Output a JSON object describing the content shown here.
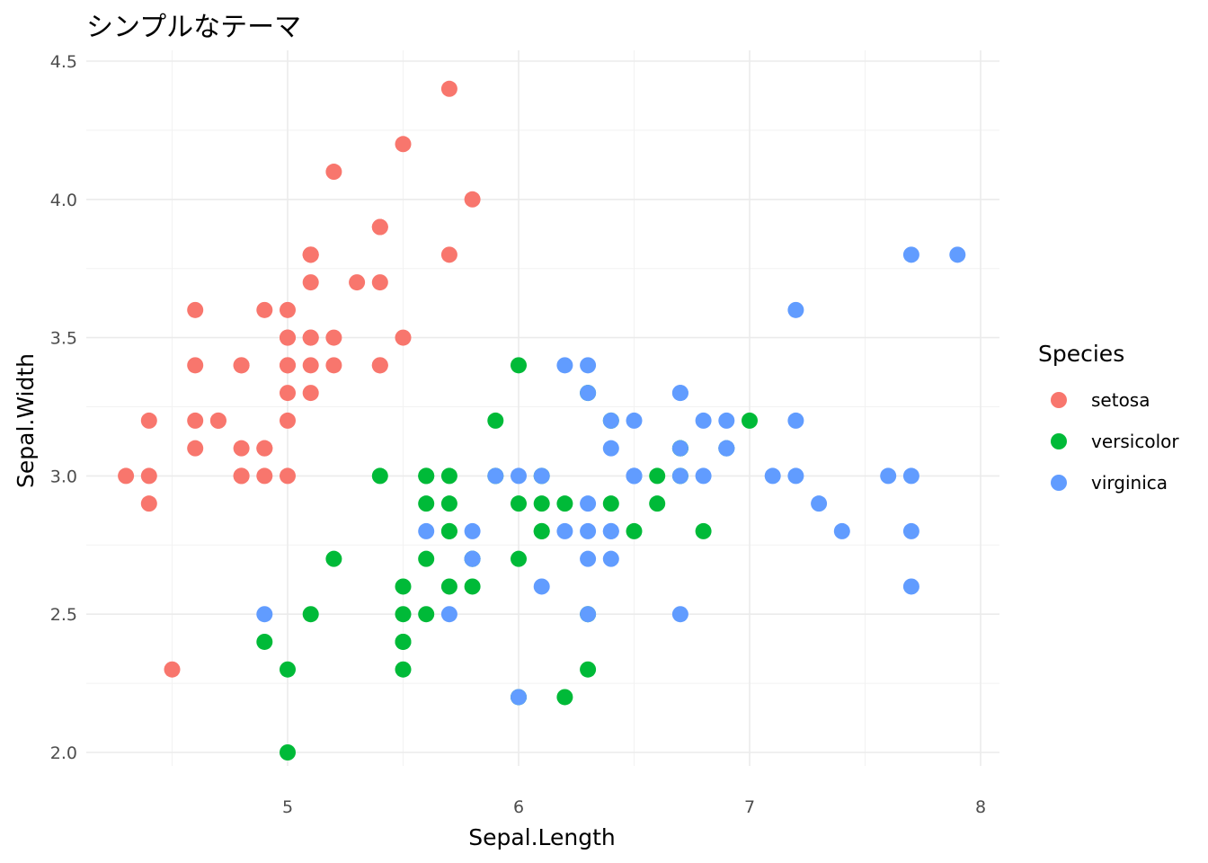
{
  "chart_data": {
    "type": "scatter",
    "title": "シンプルなテーマ",
    "xlabel": "Sepal.Length",
    "ylabel": "Sepal.Width",
    "xlim": [
      4.18,
      8.12
    ],
    "ylim": [
      1.88,
      4.52
    ],
    "x_ticks": [
      5,
      6,
      7,
      8
    ],
    "y_ticks": [
      2.0,
      2.5,
      3.0,
      3.5,
      4.0,
      4.5
    ],
    "x_tick_labels": [
      "5",
      "6",
      "7",
      "8"
    ],
    "y_tick_labels": [
      "2.0",
      "2.5",
      "3.0",
      "3.5",
      "4.0",
      "4.5"
    ],
    "grid": true,
    "legend": {
      "title": "Species",
      "position": "right"
    },
    "series": [
      {
        "name": "setosa",
        "color": "#F8766D",
        "points": [
          [
            5.1,
            3.5
          ],
          [
            4.9,
            3.0
          ],
          [
            4.7,
            3.2
          ],
          [
            4.6,
            3.1
          ],
          [
            5.0,
            3.6
          ],
          [
            5.4,
            3.9
          ],
          [
            4.6,
            3.4
          ],
          [
            5.0,
            3.4
          ],
          [
            4.4,
            2.9
          ],
          [
            4.9,
            3.1
          ],
          [
            5.4,
            3.7
          ],
          [
            4.8,
            3.4
          ],
          [
            4.8,
            3.0
          ],
          [
            4.3,
            3.0
          ],
          [
            5.8,
            4.0
          ],
          [
            5.7,
            4.4
          ],
          [
            5.4,
            3.9
          ],
          [
            5.1,
            3.5
          ],
          [
            5.7,
            3.8
          ],
          [
            5.1,
            3.8
          ],
          [
            5.4,
            3.4
          ],
          [
            5.1,
            3.7
          ],
          [
            4.6,
            3.6
          ],
          [
            5.1,
            3.3
          ],
          [
            4.8,
            3.4
          ],
          [
            5.0,
            3.0
          ],
          [
            5.0,
            3.4
          ],
          [
            5.2,
            3.5
          ],
          [
            5.2,
            3.4
          ],
          [
            4.7,
            3.2
          ],
          [
            4.8,
            3.1
          ],
          [
            5.4,
            3.4
          ],
          [
            5.2,
            4.1
          ],
          [
            5.5,
            4.2
          ],
          [
            4.9,
            3.1
          ],
          [
            5.0,
            3.2
          ],
          [
            5.5,
            3.5
          ],
          [
            4.9,
            3.6
          ],
          [
            4.4,
            3.0
          ],
          [
            5.1,
            3.4
          ],
          [
            5.0,
            3.5
          ],
          [
            4.5,
            2.3
          ],
          [
            4.4,
            3.2
          ],
          [
            5.0,
            3.5
          ],
          [
            5.1,
            3.8
          ],
          [
            4.8,
            3.0
          ],
          [
            5.1,
            3.8
          ],
          [
            4.6,
            3.2
          ],
          [
            5.3,
            3.7
          ],
          [
            5.0,
            3.3
          ]
        ]
      },
      {
        "name": "versicolor",
        "color": "#00BA38",
        "points": [
          [
            7.0,
            3.2
          ],
          [
            6.4,
            3.2
          ],
          [
            6.9,
            3.1
          ],
          [
            5.5,
            2.3
          ],
          [
            6.5,
            2.8
          ],
          [
            5.7,
            2.8
          ],
          [
            6.3,
            3.3
          ],
          [
            4.9,
            2.4
          ],
          [
            6.6,
            2.9
          ],
          [
            5.2,
            2.7
          ],
          [
            5.0,
            2.0
          ],
          [
            5.9,
            3.0
          ],
          [
            6.0,
            2.2
          ],
          [
            6.1,
            2.9
          ],
          [
            5.6,
            2.9
          ],
          [
            6.7,
            3.1
          ],
          [
            5.6,
            3.0
          ],
          [
            5.8,
            2.7
          ],
          [
            6.2,
            2.2
          ],
          [
            5.6,
            2.5
          ],
          [
            5.9,
            3.2
          ],
          [
            6.1,
            2.8
          ],
          [
            6.3,
            2.5
          ],
          [
            6.1,
            2.8
          ],
          [
            6.4,
            2.9
          ],
          [
            6.6,
            3.0
          ],
          [
            6.8,
            2.8
          ],
          [
            6.7,
            3.0
          ],
          [
            6.0,
            2.9
          ],
          [
            5.7,
            2.6
          ],
          [
            5.5,
            2.4
          ],
          [
            5.5,
            2.4
          ],
          [
            5.8,
            2.7
          ],
          [
            6.0,
            2.7
          ],
          [
            5.4,
            3.0
          ],
          [
            6.0,
            3.4
          ],
          [
            6.7,
            3.1
          ],
          [
            6.3,
            2.3
          ],
          [
            5.6,
            3.0
          ],
          [
            5.5,
            2.5
          ],
          [
            5.5,
            2.6
          ],
          [
            6.1,
            3.0
          ],
          [
            5.8,
            2.6
          ],
          [
            5.0,
            2.3
          ],
          [
            5.6,
            2.7
          ],
          [
            5.7,
            3.0
          ],
          [
            5.7,
            2.9
          ],
          [
            6.2,
            2.9
          ],
          [
            5.1,
            2.5
          ],
          [
            5.7,
            2.8
          ]
        ]
      },
      {
        "name": "virginica",
        "color": "#619CFF",
        "points": [
          [
            6.3,
            3.3
          ],
          [
            5.8,
            2.7
          ],
          [
            7.1,
            3.0
          ],
          [
            6.3,
            2.9
          ],
          [
            6.5,
            3.0
          ],
          [
            7.6,
            3.0
          ],
          [
            4.9,
            2.5
          ],
          [
            7.3,
            2.9
          ],
          [
            6.7,
            2.5
          ],
          [
            7.2,
            3.6
          ],
          [
            6.5,
            3.2
          ],
          [
            6.4,
            2.7
          ],
          [
            6.8,
            3.0
          ],
          [
            5.7,
            2.5
          ],
          [
            5.8,
            2.8
          ],
          [
            6.4,
            3.2
          ],
          [
            6.5,
            3.0
          ],
          [
            7.7,
            3.8
          ],
          [
            7.7,
            2.6
          ],
          [
            6.0,
            2.2
          ],
          [
            6.9,
            3.2
          ],
          [
            5.6,
            2.8
          ],
          [
            7.7,
            2.8
          ],
          [
            6.3,
            2.7
          ],
          [
            6.7,
            3.3
          ],
          [
            7.2,
            3.2
          ],
          [
            6.2,
            2.8
          ],
          [
            6.1,
            3.0
          ],
          [
            6.4,
            2.8
          ],
          [
            7.2,
            3.0
          ],
          [
            7.4,
            2.8
          ],
          [
            7.9,
            3.8
          ],
          [
            6.4,
            2.8
          ],
          [
            6.3,
            2.8
          ],
          [
            6.1,
            2.6
          ],
          [
            7.7,
            3.0
          ],
          [
            6.3,
            3.4
          ],
          [
            6.4,
            3.1
          ],
          [
            6.0,
            3.0
          ],
          [
            6.9,
            3.1
          ],
          [
            6.7,
            3.1
          ],
          [
            6.9,
            3.1
          ],
          [
            5.8,
            2.7
          ],
          [
            6.8,
            3.2
          ],
          [
            6.7,
            3.3
          ],
          [
            6.7,
            3.0
          ],
          [
            6.3,
            2.5
          ],
          [
            6.5,
            3.0
          ],
          [
            6.2,
            3.4
          ],
          [
            5.9,
            3.0
          ]
        ]
      }
    ]
  }
}
